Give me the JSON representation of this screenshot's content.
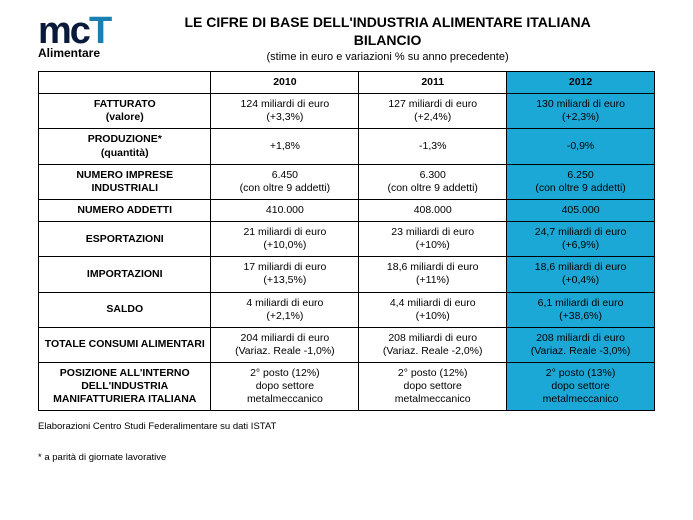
{
  "logo": {
    "m": "m",
    "c": "c",
    "t": "T",
    "sub": "Alimentare"
  },
  "title_line1": "LE CIFRE DI BASE DELL'INDUSTRIA ALIMENTARE ITALIANA",
  "title_line2": "BILANCIO",
  "subtitle": "(stime in euro e variazioni % su anno precedente)",
  "columns": {
    "c1": "2010",
    "c2": "2011",
    "c3": "2012"
  },
  "highlight_color": "#1ba8d6",
  "rows": [
    {
      "label_l1": "FATTURATO",
      "label_l2": "(valore)",
      "c1_l1": "124 miliardi di euro",
      "c1_l2": "(+3,3%)",
      "c2_l1": "127 miliardi di euro",
      "c2_l2": "(+2,4%)",
      "c3_l1": "130 miliardi di euro",
      "c3_l2": "(+2,3%)"
    },
    {
      "label_l1": "PRODUZIONE*",
      "label_l2": "(quantità)",
      "c1_l1": "+1,8%",
      "c1_l2": "",
      "c2_l1": "-1,3%",
      "c2_l2": "",
      "c3_l1": "-0,9%",
      "c3_l2": ""
    },
    {
      "label_l1": "NUMERO IMPRESE INDUSTRIALI",
      "label_l2": "",
      "c1_l1": "6.450",
      "c1_l2": "(con oltre 9 addetti)",
      "c2_l1": "6.300",
      "c2_l2": "(con oltre 9 addetti)",
      "c3_l1": "6.250",
      "c3_l2": "(con oltre 9 addetti)"
    },
    {
      "label_l1": "NUMERO ADDETTI",
      "label_l2": "",
      "c1_l1": "410.000",
      "c1_l2": "",
      "c2_l1": "408.000",
      "c2_l2": "",
      "c3_l1": "405.000",
      "c3_l2": ""
    },
    {
      "label_l1": "ESPORTAZIONI",
      "label_l2": "",
      "c1_l1": "21 miliardi di euro",
      "c1_l2": "(+10,0%)",
      "c2_l1": "23 miliardi di euro",
      "c2_l2": "(+10%)",
      "c3_l1": "24,7 miliardi di euro",
      "c3_l2": "(+6,9%)"
    },
    {
      "label_l1": "IMPORTAZIONI",
      "label_l2": "",
      "c1_l1": "17 miliardi di euro",
      "c1_l2": "(+13,5%)",
      "c2_l1": "18,6 miliardi di euro",
      "c2_l2": "(+11%)",
      "c3_l1": "18,6 miliardi di euro",
      "c3_l2": "(+0,4%)"
    },
    {
      "label_l1": "SALDO",
      "label_l2": "",
      "c1_l1": "4 miliardi di euro",
      "c1_l2": "(+2,1%)",
      "c2_l1": "4,4 miliardi di euro",
      "c2_l2": "(+10%)",
      "c3_l1": "6,1 miliardi di euro",
      "c3_l2": "(+38,6%)"
    },
    {
      "label_l1": "TOTALE CONSUMI ALIMENTARI",
      "label_l2": "",
      "c1_l1": "204 miliardi di euro",
      "c1_l2": "(Variaz. Reale -1,0%)",
      "c2_l1": "208 miliardi di euro",
      "c2_l2": "(Variaz. Reale -2,0%)",
      "c3_l1": "208 miliardi di euro",
      "c3_l2": "(Variaz. Reale -3,0%)"
    },
    {
      "label_l1": "POSIZIONE ALL'INTERNO",
      "label_l2": "DELL'INDUSTRIA",
      "label_l3": "MANIFATTURIERA ITALIANA",
      "c1_l1": "2° posto (12%)",
      "c1_l2": "dopo settore",
      "c1_l3": "metalmeccanico",
      "c2_l1": "2° posto (12%)",
      "c2_l2": "dopo settore",
      "c2_l3": "metalmeccanico",
      "c3_l1": "2° posto (13%)",
      "c3_l2": "dopo settore",
      "c3_l3": "metalmeccanico"
    }
  ],
  "footnote1": "Elaborazioni Centro Studi Federalimentare su dati ISTAT",
  "footnote2": "* a parità di giornate lavorative"
}
